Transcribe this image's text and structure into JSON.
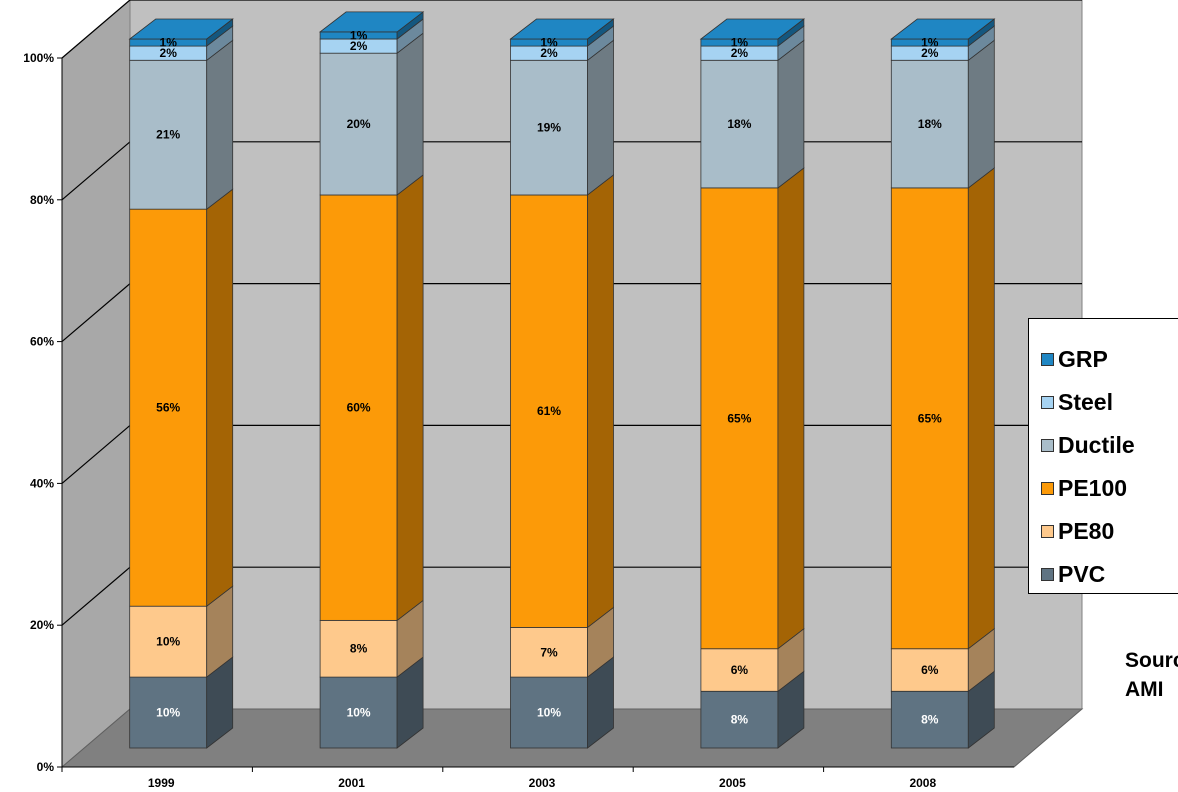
{
  "chart_data": {
    "type": "bar",
    "stacked": true,
    "percent_stacked": true,
    "three_d": true,
    "categories": [
      "1999",
      "2001",
      "2003",
      "2005",
      "2008"
    ],
    "series": [
      {
        "name": "PVC",
        "color": "#5f7382",
        "values": [
          10,
          10,
          10,
          8,
          8
        ],
        "labels": [
          "10%",
          "10%",
          "10%",
          "8%",
          "8%"
        ]
      },
      {
        "name": "PE80",
        "color": "#fec98c",
        "values": [
          10,
          8,
          7,
          6,
          6
        ],
        "labels": [
          "10%",
          "8%",
          "7%",
          "6%",
          "6%"
        ]
      },
      {
        "name": "PE100",
        "color": "#fc9a08",
        "values": [
          56,
          60,
          61,
          65,
          65
        ],
        "labels": [
          "56%",
          "60%",
          "61%",
          "65%",
          "65%"
        ]
      },
      {
        "name": "Ductile",
        "color": "#a9bdc9",
        "values": [
          21,
          20,
          19,
          18,
          18
        ],
        "labels": [
          "21%",
          "20%",
          "19%",
          "18%",
          "18%"
        ]
      },
      {
        "name": "Steel",
        "color": "#a6d3f2",
        "values": [
          2,
          2,
          2,
          2,
          2
        ],
        "labels": [
          "2%",
          "2%",
          "2%",
          "2%",
          "2%"
        ]
      },
      {
        "name": "GRP",
        "color": "#1f86c3",
        "values": [
          1,
          1,
          1,
          1,
          1
        ],
        "labels": [
          "1%",
          "1%",
          "1%",
          "1%",
          "1%"
        ]
      }
    ],
    "y_ticks": [
      "0%",
      "20%",
      "40%",
      "60%",
      "80%",
      "100%"
    ],
    "ylim": [
      0,
      100
    ],
    "grid": true,
    "legend_position": "right",
    "legend_order": [
      "GRP",
      "Steel",
      "Ductile",
      "PE100",
      "PE80",
      "PVC"
    ],
    "title": "",
    "xlabel": "",
    "ylabel": "",
    "wall_color": "#c0c0c0",
    "floor_color": "#808080"
  },
  "source_note": "Source:\nAMI"
}
